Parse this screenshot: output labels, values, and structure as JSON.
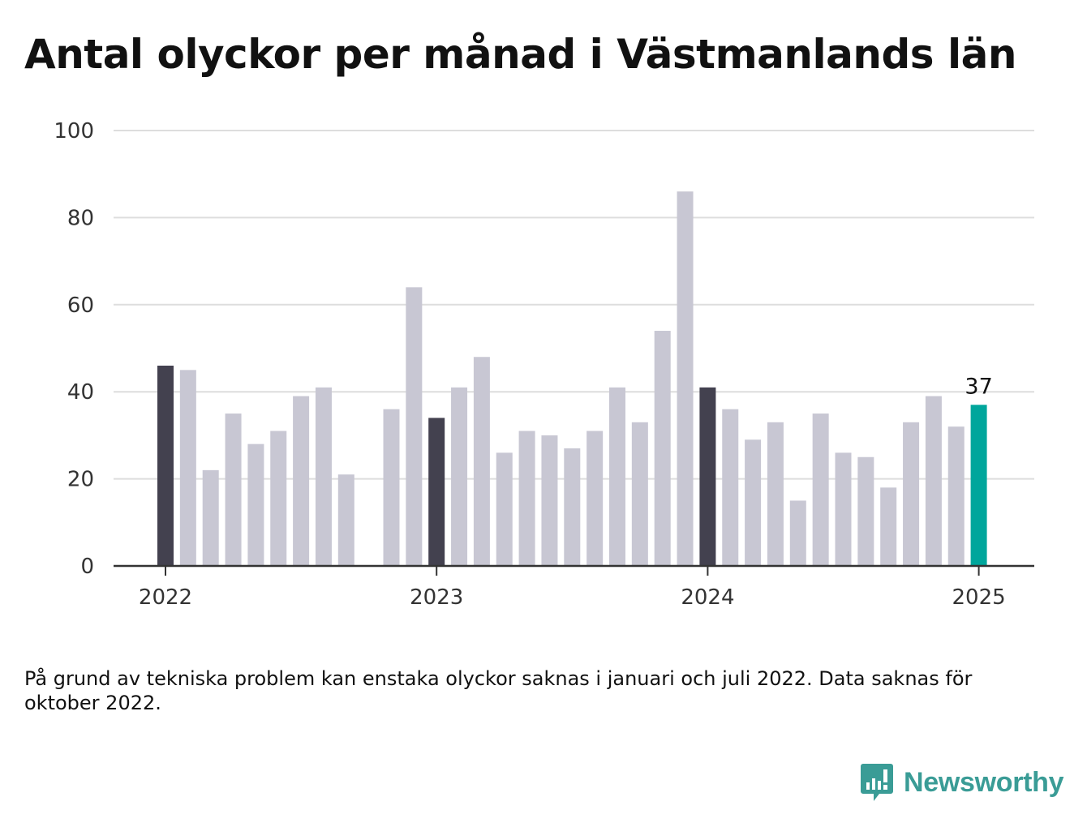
{
  "title": "Antal olyckor per månad i Västmanlands län",
  "footnote": "På grund av tekniska problem kan enstaka olyckor saknas i januari och juli 2022. Data saknas för oktober 2022.",
  "brand": {
    "name": "Newsworthy",
    "color": "#3a9c96"
  },
  "colors": {
    "bar": "#c8c7d3",
    "january_bar": "#43414f",
    "latest_bar": "#00a69c",
    "grid": "#dddddd",
    "axis": "#333333"
  },
  "chart_data": {
    "type": "bar",
    "categories": [
      "2022-01",
      "2022-02",
      "2022-03",
      "2022-04",
      "2022-05",
      "2022-06",
      "2022-07",
      "2022-08",
      "2022-09",
      "2022-10",
      "2022-11",
      "2022-12",
      "2023-01",
      "2023-02",
      "2023-03",
      "2023-04",
      "2023-05",
      "2023-06",
      "2023-07",
      "2023-08",
      "2023-09",
      "2023-10",
      "2023-11",
      "2023-12",
      "2024-01",
      "2024-02",
      "2024-03",
      "2024-04",
      "2024-05",
      "2024-06",
      "2024-07",
      "2024-08",
      "2024-09",
      "2024-10",
      "2024-11",
      "2024-12",
      "2025-01"
    ],
    "values": [
      46,
      45,
      22,
      35,
      28,
      31,
      39,
      41,
      21,
      null,
      36,
      64,
      34,
      41,
      48,
      26,
      31,
      30,
      27,
      31,
      41,
      33,
      54,
      86,
      41,
      36,
      29,
      33,
      15,
      35,
      26,
      25,
      18,
      33,
      39,
      32,
      37
    ],
    "highlight_label": "37",
    "xticks": [
      "2022",
      "2023",
      "2024",
      "2025"
    ],
    "yticks": [
      "0",
      "20",
      "40",
      "60",
      "80",
      "100"
    ],
    "ylim": [
      0,
      100
    ],
    "xlabel": "",
    "ylabel": "",
    "grid": true
  }
}
